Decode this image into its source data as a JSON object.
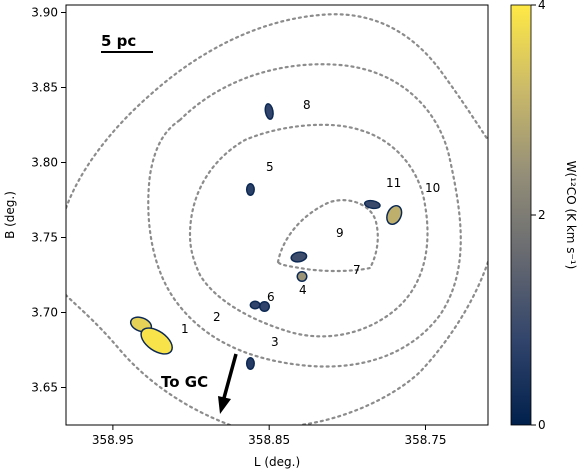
{
  "chart_data": {
    "type": "heatmap",
    "xlabel": "L (deg.)",
    "ylabel": "B (deg.)",
    "xlim": [
      358.98,
      358.71
    ],
    "ylim": [
      3.625,
      3.905
    ],
    "x_reversed": true,
    "x_ticks": [
      358.95,
      358.85,
      358.75
    ],
    "x_tick_labels": [
      "358.95",
      "358.85",
      "358.75"
    ],
    "y_ticks": [
      3.65,
      3.7,
      3.75,
      3.8,
      3.85,
      3.9
    ],
    "y_tick_labels": [
      "3.65",
      "3.70",
      "3.75",
      "3.80",
      "3.85",
      "3.90"
    ],
    "colorbar": {
      "label": "W(¹²CO (K km s⁻¹)",
      "min": 0,
      "max": 4,
      "ticks": [
        0,
        2,
        4
      ],
      "tick_labels": [
        "0",
        "2",
        "4"
      ],
      "colormap": [
        "#00204c",
        "#31446b",
        "#666970",
        "#958f78",
        "#cbba69",
        "#ffe945"
      ]
    },
    "sources": [
      {
        "id": "1",
        "l": 358.932,
        "b": 3.692,
        "w": 3.6
      },
      {
        "id": "2",
        "l": 358.922,
        "b": 3.681,
        "w": 3.9
      },
      {
        "id": "3",
        "l": 358.862,
        "b": 3.666,
        "w": 0.6
      },
      {
        "id": "4",
        "l": 358.853,
        "b": 3.704,
        "w": 0.8
      },
      {
        "id": "5",
        "l": 358.862,
        "b": 3.782,
        "w": 0.7
      },
      {
        "id": "6",
        "l": 358.859,
        "b": 3.705,
        "w": 0.8
      },
      {
        "id": "7",
        "l": 358.829,
        "b": 3.724,
        "w": 2.5
      },
      {
        "id": "8",
        "l": 358.85,
        "b": 3.834,
        "w": 0.8
      },
      {
        "id": "9",
        "l": 358.831,
        "b": 3.737,
        "w": 1.0
      },
      {
        "id": "10",
        "l": 358.77,
        "b": 3.765,
        "w": 3.0
      },
      {
        "id": "11",
        "l": 358.784,
        "b": 3.772,
        "w": 0.9
      }
    ],
    "contours": "dotted grey",
    "annotations": {
      "scale_bar": "5 pc",
      "direction": "To GC"
    }
  }
}
